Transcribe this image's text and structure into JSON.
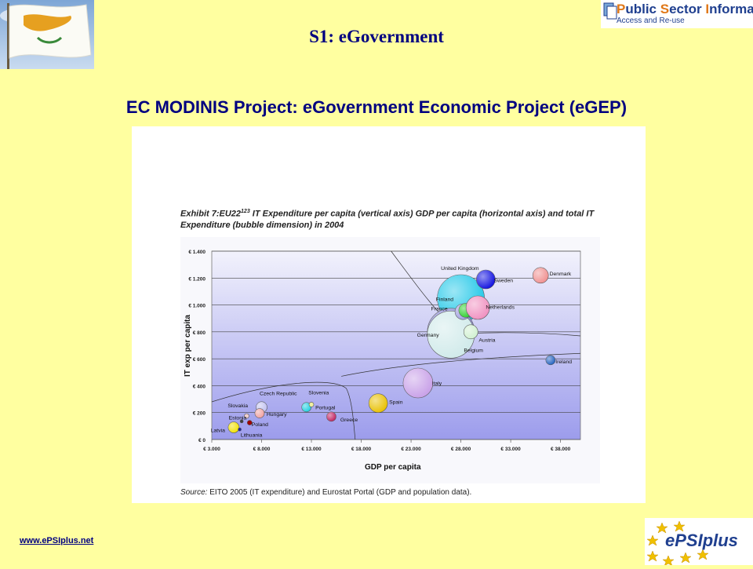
{
  "slide": {
    "title": "S1: eGovernment",
    "heading": "EC MODINIS Project: eGovernment Economic Project (eGEP)",
    "website": "www.ePSIplus.net"
  },
  "logos": {
    "psi_title_parts": [
      "P",
      "ublic ",
      "S",
      "ector ",
      "I",
      "nformation"
    ],
    "psi_subtitle": "Access and Re-use",
    "epsi_text": "ePSIplus"
  },
  "figure": {
    "caption_prefix": "Exhibit 7:EU22",
    "caption_sup": "123",
    "caption_rest": " IT Expenditure per capita (vertical axis) GDP per capita (horizontal axis) and total IT Expenditure (bubble dimension) in 2004",
    "source_label": "Source:",
    "source_text": " EITO 2005 (IT expenditure) and Eurostat Portal (GDP and population data)."
  },
  "colors": {
    "background": "#FFFFA0",
    "title": "#000080",
    "plot_top": "#F2F2FC",
    "plot_bottom": "#9C9CEC"
  },
  "chart_data": {
    "type": "scatter",
    "title": "",
    "xlabel": "GDP per capita",
    "ylabel": "IT exp per capita",
    "xlim": [
      3000,
      40000
    ],
    "ylim": [
      0,
      1400
    ],
    "x_ticks": [
      3000,
      8000,
      13000,
      18000,
      23000,
      28000,
      33000,
      38000
    ],
    "x_tick_labels": [
      "€ 3.000",
      "€ 8.000",
      "€ 13.000",
      "€ 18.000",
      "€ 23.000",
      "€ 28.000",
      "€ 33.000",
      "€ 38.000"
    ],
    "y_ticks": [
      0,
      200,
      400,
      600,
      800,
      1000,
      1200,
      1400
    ],
    "y_tick_labels": [
      "€ 0",
      "€ 200",
      "€ 400",
      "€ 600",
      "€ 800",
      "€ 1.000",
      "€ 1.200",
      "€ 1.400"
    ],
    "grid": true,
    "points": [
      {
        "name": "United Kingdom",
        "x": 28000,
        "y": 1050,
        "size": 30,
        "color": "#22C8E8"
      },
      {
        "name": "Germany",
        "x": 27000,
        "y": 800,
        "size": 30,
        "color": "#8C8CD8"
      },
      {
        "name": "Belgium",
        "x": 27000,
        "y": 780,
        "size": 30,
        "color": "#D0EAEA"
      },
      {
        "name": "France",
        "x": 28200,
        "y": 950,
        "size": 10,
        "color": "#A0A0E0"
      },
      {
        "name": "Finland",
        "x": 28500,
        "y": 960,
        "size": 9,
        "color": "#30D030"
      },
      {
        "name": "Netherlands",
        "x": 29700,
        "y": 980,
        "size": 15,
        "color": "#F090C0"
      },
      {
        "name": "Sweden",
        "x": 30500,
        "y": 1190,
        "size": 12,
        "color": "#1010E0"
      },
      {
        "name": "Denmark",
        "x": 36000,
        "y": 1220,
        "size": 10,
        "color": "#F09090"
      },
      {
        "name": "Austria",
        "x": 29000,
        "y": 800,
        "size": 9,
        "color": "#D0F0D0"
      },
      {
        "name": "Ireland",
        "x": 37000,
        "y": 590,
        "size": 6,
        "color": "#2060C0"
      },
      {
        "name": "Italy",
        "x": 23700,
        "y": 420,
        "size": 19,
        "color": "#C8A0E8"
      },
      {
        "name": "Spain",
        "x": 19700,
        "y": 270,
        "size": 12,
        "color": "#E8C000"
      },
      {
        "name": "Greece",
        "x": 15000,
        "y": 170,
        "size": 6,
        "color": "#C02060"
      },
      {
        "name": "Portugal",
        "x": 12500,
        "y": 240,
        "size": 6,
        "color": "#20D0E0"
      },
      {
        "name": "Slovenia",
        "x": 13000,
        "y": 260,
        "size": 3,
        "color": "#F0F0A0"
      },
      {
        "name": "Czech Republic",
        "x": 8000,
        "y": 240,
        "size": 7,
        "color": "#C0C0F0"
      },
      {
        "name": "Hungary",
        "x": 7800,
        "y": 195,
        "size": 6,
        "color": "#F0A0A0"
      },
      {
        "name": "Slovakia",
        "x": 6500,
        "y": 175,
        "size": 3,
        "color": "#F0D0D0"
      },
      {
        "name": "Estonia",
        "x": 6000,
        "y": 135,
        "size": 2,
        "color": "#404040"
      },
      {
        "name": "Poland",
        "x": 6800,
        "y": 125,
        "size": 3,
        "color": "#A00000"
      },
      {
        "name": "Latvia",
        "x": 5200,
        "y": 90,
        "size": 7,
        "color": "#F0E000"
      },
      {
        "name": "Lithuania",
        "x": 5800,
        "y": 75,
        "size": 2,
        "color": "#2020A0"
      }
    ],
    "labels": [
      {
        "text": "United Kingdom",
        "x": 26000,
        "y": 1260
      },
      {
        "text": "Denmark",
        "x": 36900,
        "y": 1220
      },
      {
        "text": "Sweden",
        "x": 31300,
        "y": 1170
      },
      {
        "text": "Finland",
        "x": 25500,
        "y": 1030
      },
      {
        "text": "France",
        "x": 25000,
        "y": 960
      },
      {
        "text": "Netherlands",
        "x": 30500,
        "y": 970
      },
      {
        "text": "Germany",
        "x": 23600,
        "y": 765
      },
      {
        "text": "Austria",
        "x": 29800,
        "y": 725
      },
      {
        "text": "Belgium",
        "x": 28300,
        "y": 650
      },
      {
        "text": "Ireland",
        "x": 37500,
        "y": 565
      },
      {
        "text": "Italy",
        "x": 25100,
        "y": 405
      },
      {
        "text": "Spain",
        "x": 20800,
        "y": 265
      },
      {
        "text": "Greece",
        "x": 15900,
        "y": 135
      },
      {
        "text": "Portugal",
        "x": 13400,
        "y": 225
      },
      {
        "text": "Slovenia",
        "x": 12700,
        "y": 335
      },
      {
        "text": "Czech Republic",
        "x": 7800,
        "y": 330
      },
      {
        "text": "Hungary",
        "x": 8500,
        "y": 175
      },
      {
        "text": "Slovakia",
        "x": 4600,
        "y": 240
      },
      {
        "text": "Estonia",
        "x": 4700,
        "y": 150
      },
      {
        "text": "Poland",
        "x": 7000,
        "y": 100
      },
      {
        "text": "Latvia",
        "x": 2900,
        "y": 55
      },
      {
        "text": "Lithuania",
        "x": 5900,
        "y": 20
      }
    ]
  }
}
